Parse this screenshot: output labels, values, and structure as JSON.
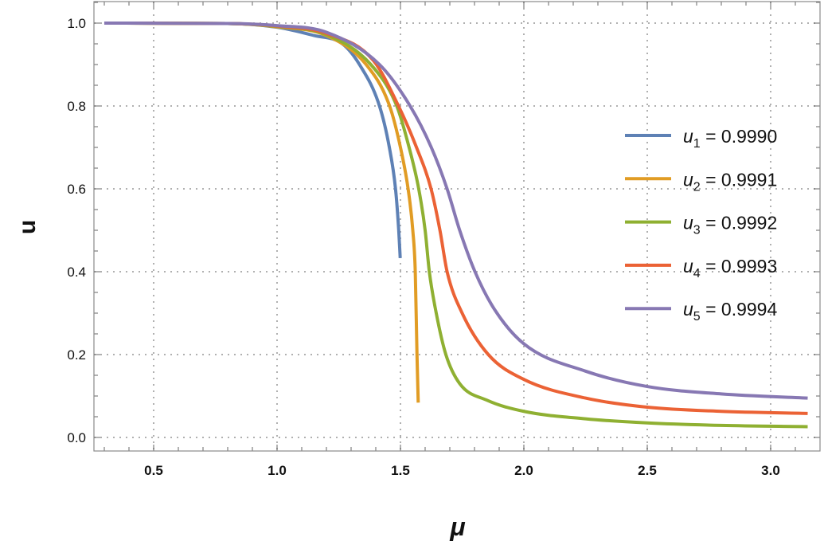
{
  "chart_data": {
    "type": "line",
    "xlabel": "μ",
    "ylabel": "u",
    "xlim": [
      0.3,
      3.2
    ],
    "ylim": [
      -0.03,
      1.05
    ],
    "grid": true,
    "legend_position": "right",
    "x_ticks": [
      "0.5",
      "1.0",
      "1.5",
      "2.0",
      "2.5",
      "3.0"
    ],
    "y_ticks": [
      "0.0",
      "0.2",
      "0.4",
      "0.6",
      "0.8",
      "1.0"
    ],
    "series": [
      {
        "name": "u1 = 0.9990",
        "symbol": "u",
        "sub": "1",
        "value_text": " = 0.9990",
        "color": "#5E81B5",
        "x": [
          0.3,
          0.8,
          1.0,
          1.15,
          1.265,
          1.334,
          1.415,
          1.455,
          1.48,
          1.493,
          1.499
        ],
        "y": [
          1.0,
          0.999,
          0.99,
          0.97,
          0.95,
          0.9,
          0.8,
          0.7,
          0.6,
          0.5,
          0.433
        ]
      },
      {
        "name": "u2 = 0.9991",
        "symbol": "u",
        "sub": "2",
        "value_text": " = 0.9991",
        "color": "#E19C24",
        "x": [
          0.3,
          0.8,
          1.0,
          1.2,
          1.361,
          1.456,
          1.5,
          1.531,
          1.55,
          1.56,
          1.567,
          1.572
        ],
        "y": [
          1.0,
          0.999,
          0.991,
          0.97,
          0.9,
          0.8,
          0.7,
          0.6,
          0.5,
          0.4,
          0.2,
          0.084
        ]
      },
      {
        "name": "u3 = 0.9992",
        "symbol": "u",
        "sub": "3",
        "value_text": " = 0.9992",
        "color": "#8FB032",
        "x": [
          0.3,
          0.8,
          1.0,
          1.2,
          1.38,
          1.485,
          1.535,
          1.574,
          1.6,
          1.617,
          1.645,
          1.684,
          1.74,
          1.85,
          2.0,
          2.25,
          2.5,
          2.8,
          3.15
        ],
        "y": [
          1.0,
          0.999,
          0.992,
          0.972,
          0.9,
          0.8,
          0.7,
          0.6,
          0.5,
          0.4,
          0.3,
          0.2,
          0.13,
          0.09,
          0.063,
          0.045,
          0.035,
          0.029,
          0.026
        ]
      },
      {
        "name": "u4 = 0.9993",
        "symbol": "u",
        "sub": "4",
        "value_text": " = 0.9993",
        "color": "#EB6235",
        "x": [
          0.3,
          0.8,
          1.0,
          1.2,
          1.39,
          1.492,
          1.565,
          1.624,
          1.66,
          1.689,
          1.75,
          1.856,
          2.0,
          2.25,
          2.5,
          2.8,
          3.15
        ],
        "y": [
          1.0,
          0.999,
          0.993,
          0.975,
          0.91,
          0.8,
          0.7,
          0.6,
          0.5,
          0.4,
          0.3,
          0.2,
          0.14,
          0.095,
          0.073,
          0.063,
          0.058
        ]
      },
      {
        "name": "u5 = 0.9994",
        "symbol": "u",
        "sub": "5",
        "value_text": " = 0.9994",
        "color": "#8778B3",
        "x": [
          0.3,
          0.8,
          1.0,
          1.2,
          1.415,
          1.539,
          1.625,
          1.689,
          1.74,
          1.802,
          1.88,
          2.0,
          2.25,
          2.5,
          2.8,
          3.15
        ],
        "y": [
          1.0,
          0.999,
          0.994,
          0.978,
          0.9,
          0.8,
          0.7,
          0.6,
          0.5,
          0.4,
          0.31,
          0.226,
          0.16,
          0.123,
          0.105,
          0.095
        ]
      }
    ]
  }
}
